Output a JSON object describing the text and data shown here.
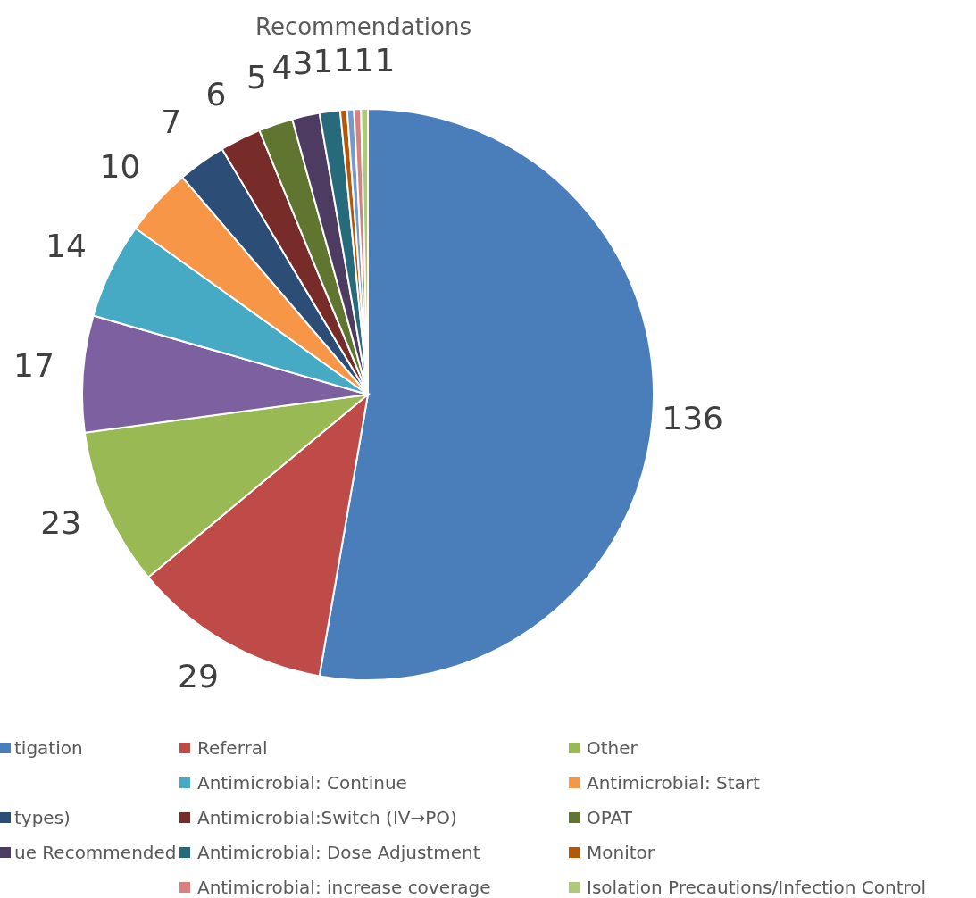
{
  "chart_data": {
    "type": "pie",
    "title": "Recommendations",
    "categories": [
      "tigation",
      "Referral",
      "Other",
      null,
      "Antimicrobial: Continue",
      "Antimicrobial: Start",
      "types)",
      "Antimicrobial:Switch (IV→PO)",
      "OPAT",
      "ue Recommended",
      "Antimicrobial: Dose Adjustment",
      "Monitor",
      null,
      "Antimicrobial: increase coverage",
      "Isolation Precautions/Infection Control"
    ],
    "values": [
      136,
      29,
      23,
      17,
      14,
      10,
      7,
      6,
      5,
      4,
      3,
      1,
      1,
      1,
      1
    ],
    "colors": [
      "#4a7ebb",
      "#be4b48",
      "#98b954",
      "#7d60a0",
      "#46aac5",
      "#f79646",
      "#2c4d75",
      "#772c2a",
      "#5f7530",
      "#4d3b62",
      "#276a7c",
      "#b65708",
      "#729aca",
      "#d8807e",
      "#afc97a"
    ],
    "data_labels": true,
    "legend": "bottom"
  }
}
